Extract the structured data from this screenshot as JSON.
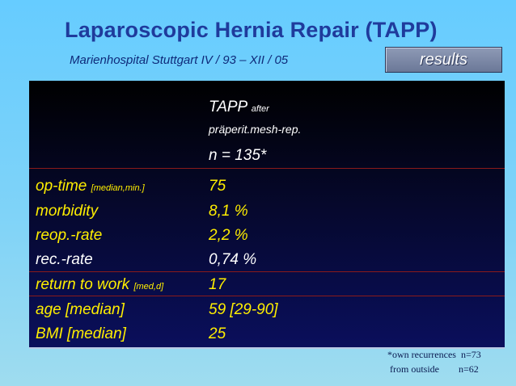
{
  "header": {
    "title": "Laparoscopic Hernia Repair (TAPP)",
    "subtitle": "Marienhospital Stuttgart  IV / 93 – XII / 05",
    "results_button": "results"
  },
  "table": {
    "col_header": {
      "name": "TAPP",
      "qualifier": "after",
      "detail": "präperit.mesh-rep.",
      "n": "n = 135*"
    },
    "rows": [
      {
        "label": "op-time",
        "note": "[median,min.]",
        "value": "75"
      },
      {
        "label": "morbidity",
        "note": "",
        "value": "8,1 %"
      },
      {
        "label": "reop.-rate",
        "note": "",
        "value": "2,2 %"
      },
      {
        "label": "rec.-rate",
        "note": "",
        "value": "0,74 %"
      },
      {
        "label": "return to work",
        "note": "[med,d]",
        "value": "17"
      },
      {
        "label": "age [median]",
        "note": "",
        "value": "59 [29-90]"
      },
      {
        "label": "BMI [median]",
        "note": "",
        "value": "25"
      }
    ]
  },
  "footnote": {
    "line1": "*own recurrences  n=73",
    "line2": " from outside        n=62"
  },
  "colors": {
    "label_yellow": "#ffee00",
    "white": "#ffffff",
    "title_blue": "#1f3b9c"
  }
}
